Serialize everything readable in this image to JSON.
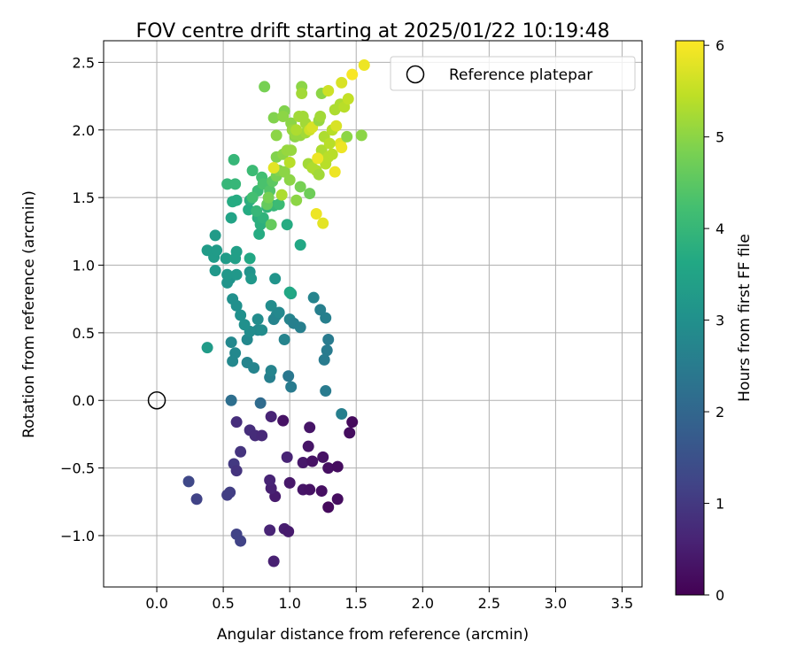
{
  "chart_data": {
    "type": "scatter",
    "title": "FOV centre drift starting at 2025/01/22 10:19:48",
    "xlabel": "Angular distance from reference (arcmin)",
    "ylabel": "Rotation from reference (arcmin)",
    "xlim": [
      -0.4,
      3.65
    ],
    "ylim": [
      -1.38,
      2.66
    ],
    "xticks": [
      0.0,
      0.5,
      1.0,
      1.5,
      2.0,
      2.5,
      3.0,
      3.5
    ],
    "xtick_labels": [
      "0.0",
      "0.5",
      "1.0",
      "1.5",
      "2.0",
      "2.5",
      "3.0",
      "3.5"
    ],
    "yticks": [
      -1.0,
      -0.5,
      0.0,
      0.5,
      1.0,
      1.5,
      2.0,
      2.5
    ],
    "ytick_labels": [
      "−1.0",
      "−0.5",
      "0.0",
      "0.5",
      "1.0",
      "1.5",
      "2.0",
      "2.5"
    ],
    "grid": true,
    "legend": {
      "placement": "top-right",
      "entries": [
        "Reference platepar"
      ]
    },
    "reference": {
      "name": "Reference platepar",
      "x": 0.0,
      "y": 0.0
    },
    "colorbar": {
      "label": "Hours from first FF file",
      "range": [
        0,
        6.05
      ],
      "ticks": [
        0,
        1,
        2,
        3,
        4,
        5,
        6
      ],
      "tick_labels": [
        "0",
        "1",
        "2",
        "3",
        "4",
        "5",
        "6"
      ],
      "colormap": "viridis"
    },
    "points": [
      [
        0.95,
        -0.15,
        0.3
      ],
      [
        1.15,
        -0.2,
        0.35
      ],
      [
        1.45,
        -0.24,
        0.2
      ],
      [
        1.47,
        -0.16,
        0.15
      ],
      [
        1.14,
        -0.34,
        0.35
      ],
      [
        1.1,
        -0.46,
        0.4
      ],
      [
        1.17,
        -0.45,
        0.3
      ],
      [
        1.25,
        -0.42,
        0.3
      ],
      [
        1.29,
        -0.5,
        0.25
      ],
      [
        1.36,
        -0.49,
        0.2
      ],
      [
        1.0,
        -0.61,
        0.4
      ],
      [
        1.1,
        -0.66,
        0.35
      ],
      [
        1.15,
        -0.66,
        0.3
      ],
      [
        1.24,
        -0.67,
        0.25
      ],
      [
        1.36,
        -0.73,
        0.2
      ],
      [
        1.29,
        -0.79,
        0.15
      ],
      [
        0.89,
        -0.71,
        0.45
      ],
      [
        0.86,
        -0.65,
        0.55
      ],
      [
        0.85,
        -0.59,
        0.6
      ],
      [
        0.85,
        -0.96,
        0.6
      ],
      [
        0.96,
        -0.95,
        0.5
      ],
      [
        0.99,
        -0.97,
        0.45
      ],
      [
        0.88,
        -1.19,
        0.55
      ],
      [
        0.6,
        -0.99,
        1.2
      ],
      [
        0.63,
        -1.04,
        1.2
      ],
      [
        0.24,
        -0.6,
        1.3
      ],
      [
        0.3,
        -0.73,
        1.2
      ],
      [
        0.53,
        -0.7,
        1.1
      ],
      [
        0.55,
        -0.68,
        1.1
      ],
      [
        0.58,
        -0.47,
        1.0
      ],
      [
        0.6,
        -0.52,
        0.9
      ],
      [
        0.63,
        -0.38,
        0.9
      ],
      [
        0.7,
        -0.22,
        0.8
      ],
      [
        0.6,
        -0.16,
        0.8
      ],
      [
        0.74,
        -0.26,
        0.75
      ],
      [
        0.79,
        -0.26,
        0.7
      ],
      [
        0.86,
        -0.12,
        0.6
      ],
      [
        0.78,
        -0.02,
        2.1
      ],
      [
        0.56,
        0.0,
        2.2
      ],
      [
        0.98,
        -0.42,
        0.6
      ],
      [
        1.39,
        -0.1,
        2.6
      ],
      [
        1.27,
        0.07,
        2.5
      ],
      [
        0.99,
        0.18,
        2.4
      ],
      [
        1.01,
        0.1,
        2.5
      ],
      [
        0.85,
        0.17,
        2.6
      ],
      [
        0.86,
        0.22,
        2.7
      ],
      [
        0.73,
        0.24,
        2.7
      ],
      [
        0.68,
        0.28,
        2.7
      ],
      [
        0.57,
        0.29,
        2.8
      ],
      [
        0.59,
        0.35,
        2.8
      ],
      [
        0.38,
        0.39,
        3.3
      ],
      [
        0.56,
        0.43,
        2.8
      ],
      [
        0.68,
        0.45,
        2.8
      ],
      [
        0.76,
        0.52,
        2.8
      ],
      [
        0.79,
        0.52,
        2.9
      ],
      [
        0.7,
        0.51,
        2.9
      ],
      [
        0.66,
        0.56,
        3.0
      ],
      [
        0.76,
        0.6,
        2.9
      ],
      [
        0.86,
        0.7,
        2.9
      ],
      [
        0.9,
        0.63,
        2.8
      ],
      [
        0.88,
        0.6,
        2.7
      ],
      [
        0.92,
        0.65,
        2.8
      ],
      [
        0.96,
        0.45,
        2.7
      ],
      [
        1.0,
        0.6,
        2.7
      ],
      [
        1.03,
        0.57,
        2.6
      ],
      [
        1.08,
        0.54,
        2.6
      ],
      [
        1.18,
        0.76,
        2.7
      ],
      [
        1.23,
        0.67,
        2.6
      ],
      [
        1.27,
        0.61,
        2.6
      ],
      [
        1.29,
        0.45,
        2.5
      ],
      [
        1.28,
        0.37,
        2.5
      ],
      [
        1.26,
        0.3,
        2.5
      ],
      [
        0.57,
        0.75,
        3.0
      ],
      [
        0.6,
        0.7,
        3.0
      ],
      [
        0.63,
        0.63,
        3.0
      ],
      [
        0.55,
        0.9,
        3.1
      ],
      [
        0.53,
        0.87,
        3.1
      ],
      [
        0.6,
        0.93,
        3.2
      ],
      [
        0.7,
        0.95,
        3.1
      ],
      [
        0.71,
        0.9,
        3.2
      ],
      [
        0.89,
        0.9,
        3.1
      ],
      [
        1.01,
        0.79,
        3.5
      ],
      [
        1.0,
        0.8,
        3.6
      ],
      [
        0.38,
        1.11,
        3.3
      ],
      [
        0.43,
        1.06,
        3.3
      ],
      [
        0.45,
        1.11,
        3.3
      ],
      [
        0.52,
        1.05,
        3.3
      ],
      [
        0.6,
        1.1,
        3.4
      ],
      [
        0.59,
        1.05,
        3.4
      ],
      [
        0.7,
        1.05,
        3.6
      ],
      [
        0.44,
        0.96,
        3.2
      ],
      [
        0.53,
        0.93,
        3.2
      ],
      [
        0.44,
        1.22,
        3.3
      ],
      [
        0.56,
        1.35,
        3.5
      ],
      [
        0.57,
        1.47,
        3.7
      ],
      [
        0.6,
        1.48,
        3.7
      ],
      [
        0.69,
        1.41,
        3.7
      ],
      [
        0.7,
        1.48,
        3.8
      ],
      [
        0.76,
        1.35,
        3.8
      ],
      [
        0.77,
        1.23,
        3.7
      ],
      [
        0.78,
        1.3,
        3.8
      ],
      [
        0.8,
        1.35,
        3.9
      ],
      [
        0.83,
        1.43,
        3.9
      ],
      [
        0.88,
        1.44,
        4.0
      ],
      [
        0.92,
        1.45,
        4.1
      ],
      [
        0.98,
        1.3,
        3.7
      ],
      [
        1.08,
        1.15,
        3.6
      ],
      [
        0.53,
        1.6,
        4.0
      ],
      [
        0.59,
        1.6,
        4.0
      ],
      [
        0.58,
        1.78,
        4.0
      ],
      [
        0.72,
        1.7,
        4.1
      ],
      [
        0.76,
        1.55,
        4.1
      ],
      [
        0.79,
        1.65,
        4.2
      ],
      [
        0.8,
        1.6,
        4.3
      ],
      [
        0.85,
        1.55,
        4.4
      ],
      [
        0.87,
        1.62,
        4.5
      ],
      [
        0.83,
        1.45,
        4.6
      ],
      [
        0.86,
        1.3,
        4.6
      ],
      [
        0.84,
        1.5,
        4.8
      ],
      [
        0.9,
        1.66,
        4.8
      ],
      [
        0.92,
        1.7,
        4.9
      ],
      [
        0.96,
        1.69,
        5.0
      ],
      [
        1.0,
        1.63,
        5.0
      ],
      [
        1.08,
        1.58,
        4.8
      ],
      [
        1.15,
        1.53,
        4.7
      ],
      [
        1.05,
        1.48,
        5.0
      ],
      [
        0.94,
        1.52,
        5.3
      ],
      [
        0.9,
        1.8,
        4.9
      ],
      [
        0.95,
        1.82,
        5.0
      ],
      [
        0.98,
        1.85,
        5.1
      ],
      [
        1.01,
        1.85,
        5.1
      ],
      [
        1.04,
        1.95,
        5.0
      ],
      [
        1.08,
        1.96,
        5.1
      ],
      [
        1.12,
        1.98,
        5.2
      ],
      [
        1.14,
        1.75,
        5.2
      ],
      [
        1.17,
        1.72,
        5.3
      ],
      [
        1.2,
        1.7,
        5.3
      ],
      [
        1.22,
        1.67,
        5.2
      ],
      [
        1.24,
        1.85,
        5.3
      ],
      [
        1.27,
        1.75,
        5.4
      ],
      [
        1.29,
        1.8,
        5.4
      ],
      [
        1.32,
        1.82,
        5.4
      ],
      [
        1.34,
        1.69,
        5.9
      ],
      [
        1.38,
        1.9,
        5.8
      ],
      [
        1.39,
        1.87,
        5.9
      ],
      [
        1.43,
        1.95,
        5.0
      ],
      [
        1.54,
        1.96,
        5.0
      ],
      [
        0.9,
        1.96,
        5.0
      ],
      [
        0.88,
        2.09,
        4.9
      ],
      [
        0.96,
        2.14,
        4.9
      ],
      [
        0.95,
        2.1,
        5.0
      ],
      [
        1.01,
        2.05,
        5.0
      ],
      [
        1.02,
        2.0,
        5.1
      ],
      [
        1.04,
        1.97,
        5.1
      ],
      [
        1.07,
        2.1,
        5.2
      ],
      [
        1.1,
        2.1,
        5.2
      ],
      [
        1.12,
        2.05,
        5.2
      ],
      [
        1.15,
        2.0,
        5.6
      ],
      [
        1.17,
        2.02,
        5.7
      ],
      [
        1.22,
        2.07,
        5.1
      ],
      [
        1.23,
        2.1,
        5.2
      ],
      [
        1.26,
        1.95,
        5.3
      ],
      [
        1.3,
        1.9,
        5.4
      ],
      [
        1.32,
        2.0,
        5.4
      ],
      [
        1.34,
        2.15,
        5.3
      ],
      [
        1.35,
        2.03,
        5.7
      ],
      [
        1.38,
        2.19,
        5.3
      ],
      [
        1.39,
        2.35,
        5.7
      ],
      [
        1.41,
        2.17,
        5.4
      ],
      [
        1.44,
        2.23,
        5.5
      ],
      [
        1.47,
        2.41,
        6.0
      ],
      [
        1.56,
        2.48,
        5.9
      ],
      [
        0.81,
        2.32,
        4.8
      ],
      [
        1.09,
        2.32,
        5.0
      ],
      [
        1.09,
        2.27,
        5.2
      ],
      [
        1.24,
        2.27,
        5.0
      ],
      [
        1.29,
        2.29,
        5.6
      ],
      [
        1.2,
        1.38,
        5.9
      ],
      [
        1.25,
        1.31,
        5.8
      ],
      [
        1.21,
        1.79,
        5.9
      ],
      [
        0.88,
        1.72,
        5.8
      ],
      [
        1.0,
        1.76,
        5.4
      ],
      [
        1.05,
        2.0,
        5.3
      ],
      [
        0.72,
        1.5,
        4.2
      ],
      [
        0.75,
        1.4,
        4.0
      ]
    ]
  }
}
